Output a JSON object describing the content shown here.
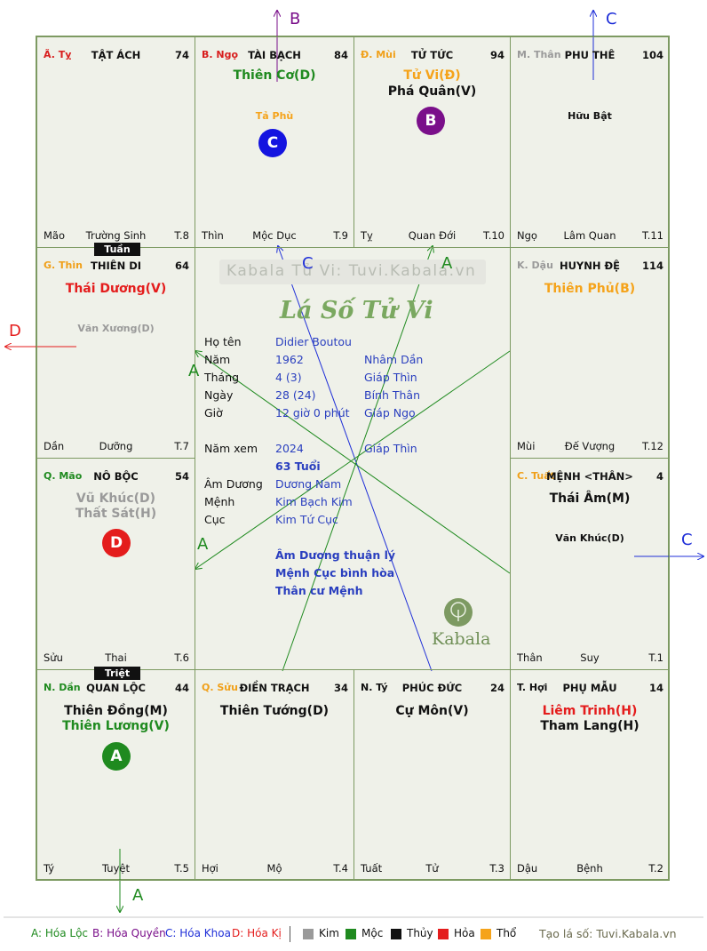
{
  "palaces": [
    {
      "id": "ty",
      "corner": "Ã. Tỵ",
      "corner_color": "c-red",
      "name": "TẬT ÁCH",
      "num": "74",
      "stars": [],
      "minors": [],
      "bottom_left": "Mão",
      "bottom_mid": "Trường Sinh",
      "bottom_right": "T.8"
    },
    {
      "id": "ngo",
      "corner": "B. Ngọ",
      "corner_color": "c-red",
      "name": "TÀI BẠCH",
      "num": "84",
      "stars": [
        {
          "text": "Thiên Cơ(D)",
          "cls": "c-moc"
        }
      ],
      "minors": [
        {
          "text": "Tả Phù",
          "cls": "c-tho"
        }
      ],
      "bottom_left": "Thìn",
      "bottom_mid": "Mộc Dục",
      "bottom_right": "T.9"
    },
    {
      "id": "mui",
      "corner": "Đ. Mùi",
      "corner_color": "c-orange",
      "name": "TỬ TỨC",
      "num": "94",
      "stars": [
        {
          "text": "Tử Vi(Đ)",
          "cls": "c-tho"
        },
        {
          "text": "Phá Quân(V)",
          "cls": "c-thuy"
        }
      ],
      "minors": [],
      "bottom_left": "Tỵ",
      "bottom_mid": "Quan Đới",
      "bottom_right": "T.10"
    },
    {
      "id": "than",
      "corner": "M. Thân",
      "corner_color": "c-gray",
      "name": "PHU THÊ",
      "num": "104",
      "stars": [],
      "minors": [
        {
          "text": "Hữu Bật",
          "cls": "c-thuy"
        }
      ],
      "bottom_left": "Ngọ",
      "bottom_mid": "Lâm Quan",
      "bottom_right": "T.11"
    },
    {
      "id": "thin",
      "corner": "G. Thìn",
      "corner_color": "c-orange",
      "name": "THIÊN DI",
      "num": "64",
      "stars": [
        {
          "text": "Thái Dương(V)",
          "cls": "c-hoa"
        }
      ],
      "minors": [
        {
          "text": "Văn Xương(D)",
          "cls": "c-kim"
        }
      ],
      "bottom_left": "Dần",
      "bottom_mid": "Dưỡng",
      "bottom_right": "T.7"
    },
    {
      "id": "dau",
      "corner": "K. Dậu",
      "corner_color": "c-gray",
      "name": "HUYNH ĐỆ",
      "num": "114",
      "stars": [
        {
          "text": "Thiên Phủ(B)",
          "cls": "c-tho"
        }
      ],
      "minors": [],
      "bottom_left": "Mùi",
      "bottom_mid": "Đế Vượng",
      "bottom_right": "T.12"
    },
    {
      "id": "mao",
      "corner": "Q. Mão",
      "corner_color": "c-green",
      "name": "NÔ BỘC",
      "num": "54",
      "stars": [
        {
          "text": "Vũ Khúc(D)",
          "cls": "c-kim"
        },
        {
          "text": "Thất Sát(H)",
          "cls": "c-kim"
        }
      ],
      "minors": [],
      "bottom_left": "Sửu",
      "bottom_mid": "Thai",
      "bottom_right": "T.6"
    },
    {
      "id": "tuat",
      "corner": "C. Tuất",
      "corner_color": "c-orange",
      "name": "MỆNH <THÂN>",
      "num": "4",
      "stars": [
        {
          "text": "Thái Âm(M)",
          "cls": "c-thuy"
        }
      ],
      "minors": [
        {
          "text": "Văn Khúc(D)",
          "cls": "c-thuy"
        }
      ],
      "bottom_left": "Thân",
      "bottom_mid": "Suy",
      "bottom_right": "T.1"
    },
    {
      "id": "dan",
      "corner": "N. Dần",
      "corner_color": "c-green",
      "name": "QUAN LỘC",
      "num": "44",
      "stars": [
        {
          "text": "Thiên Đồng(M)",
          "cls": "c-thuy"
        },
        {
          "text": "Thiên Lương(V)",
          "cls": "c-moc"
        }
      ],
      "minors": [],
      "bottom_left": "Tý",
      "bottom_mid": "Tuyệt",
      "bottom_right": "T.5"
    },
    {
      "id": "suu",
      "corner": "Q. Sửu",
      "corner_color": "c-orange",
      "name": "ĐIỀN TRẠCH",
      "num": "34",
      "stars": [
        {
          "text": "Thiên Tướng(D)",
          "cls": "c-thuy"
        }
      ],
      "minors": [],
      "bottom_left": "Hợi",
      "bottom_mid": "Mộ",
      "bottom_right": "T.4"
    },
    {
      "id": "ti",
      "corner": "N. Tý",
      "corner_color": "c-thuy",
      "name": "PHÚC ĐỨC",
      "num": "24",
      "stars": [
        {
          "text": "Cự Môn(V)",
          "cls": "c-thuy"
        }
      ],
      "minors": [],
      "bottom_left": "Tuất",
      "bottom_mid": "Tử",
      "bottom_right": "T.3"
    },
    {
      "id": "hoi",
      "corner": "T. Hợi",
      "corner_color": "c-thuy",
      "name": "PHỤ MẪU",
      "num": "14",
      "stars": [
        {
          "text": "Liêm Trinh(H)",
          "cls": "c-hoa"
        },
        {
          "text": "Tham Lang(H)",
          "cls": "c-thuy"
        }
      ],
      "minors": [],
      "bottom_left": "Dậu",
      "bottom_mid": "Bệnh",
      "bottom_right": "T.2"
    }
  ],
  "tags": {
    "tuan": "Tuần",
    "triet": "Triệt"
  },
  "circles": {
    "c_tai_bach": "C",
    "b_tu_tuc": "B",
    "d_no_boc": "D",
    "a_quan_loc": "A"
  },
  "center": {
    "watermark": "Kabala Tử Vi: Tuvi.Kabala.vn",
    "title": "Lá Số Tử Vi",
    "ho_ten_label": "Họ tên",
    "ho_ten": "Didier Boutou",
    "nam_label": "Năm",
    "nam": "1962",
    "nam_can_chi": "Nhâm Dần",
    "thang_label": "Tháng",
    "thang": "4  (3)",
    "thang_can_chi": "Giáp Thìn",
    "ngay_label": "Ngày",
    "ngay": "28  (24)",
    "ngay_can_chi": "Bính Thân",
    "gio_label": "Giờ",
    "gio": "12 giờ 0 phút",
    "gio_can_chi": "Giáp Ngọ",
    "nam_xem_label": "Năm xem",
    "nam_xem": "2024",
    "nam_xem_can_chi": "Giáp Thìn",
    "tuoi": "63 Tuổi",
    "am_duong_label": "Âm Dương",
    "am_duong": "Dương Nam",
    "menh_label": "Mệnh",
    "menh": "Kim Bạch Kim",
    "cuc_label": "Cục",
    "cuc": "Kim Tứ Cục",
    "note1": "Âm Dương thuận lý",
    "note2": "Mệnh Cục bình hòa",
    "note3": "Thân cư Mệnh",
    "logo": "Kabala"
  },
  "arrow_labels": {
    "b_top": "B",
    "c_top": "C",
    "d_left": "D",
    "c_right": "C",
    "a_bottom": "A",
    "c_center": "C",
    "a_center_top": "A",
    "a_left_upper": "A",
    "a_left_lower": "A"
  },
  "legend": {
    "a": "A: Hóa Lộc",
    "b": "B: Hóa Quyền",
    "c": "C: Hóa Khoa",
    "d": "D: Hóa Kị",
    "kim": "Kim",
    "moc": "Mộc",
    "thuy": "Thủy",
    "hoa": "Hỏa",
    "tho": "Thổ",
    "site": "Tạo lá số: Tuvi.Kabala.vn"
  },
  "colors": {
    "kim": "#9a9a9a",
    "moc": "#1f8a1f",
    "thuy": "#111111",
    "hoa": "#e41c1c",
    "tho": "#f5a31a",
    "blue_line": "#1f2fd8",
    "green_line": "#1f8a1f",
    "purple": "#7a0f8a"
  }
}
